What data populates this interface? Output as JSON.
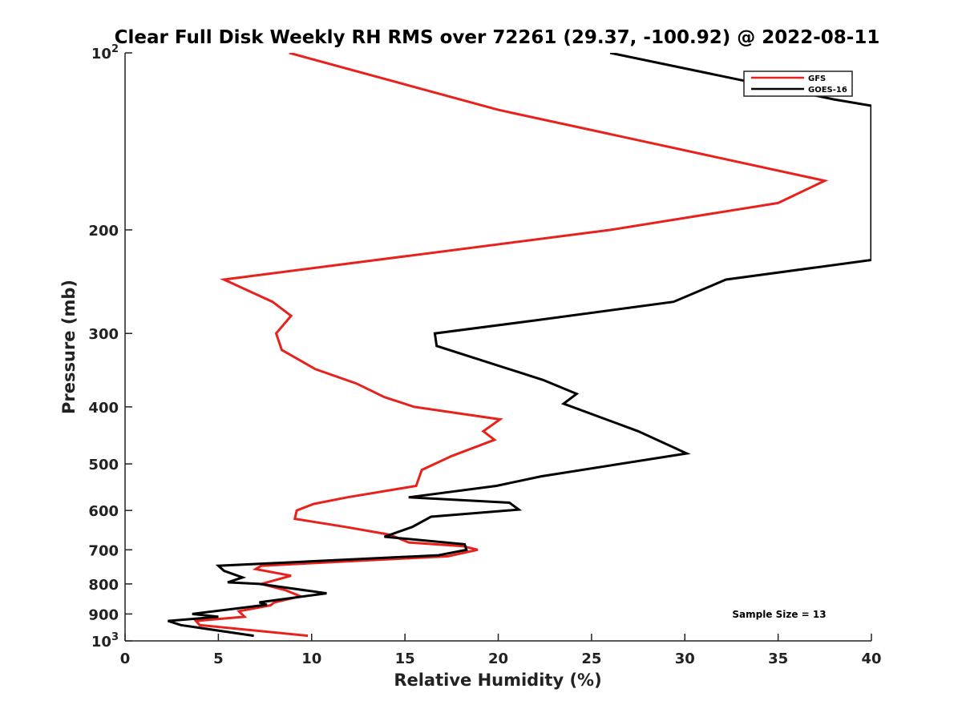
{
  "chart_data": {
    "type": "line",
    "title": "Clear Full Disk Weekly RH RMS over 72261 (29.37, -100.92) @ 2022-08-11",
    "xlabel": "Relative Humidity (%)",
    "ylabel": "Pressure (mb)",
    "xlim": [
      0,
      40
    ],
    "ylim": [
      100,
      1000
    ],
    "y_scale": "log",
    "y_reversed": true,
    "x_ticks": [
      0,
      5,
      10,
      15,
      20,
      25,
      30,
      35,
      40
    ],
    "x_tick_labels": [
      "0",
      "5",
      "10",
      "15",
      "20",
      "25",
      "30",
      "35",
      "40"
    ],
    "y_ticks": [
      100,
      200,
      300,
      400,
      500,
      600,
      700,
      800,
      900,
      1000
    ],
    "y_tick_labels": [
      "10^2",
      "200",
      "300",
      "400",
      "500",
      "600",
      "700",
      "800",
      "900",
      "10^3"
    ],
    "grid": false,
    "legend_position": "top-right",
    "annotation": "Sample Size = 13",
    "series": [
      {
        "name": "GFS",
        "color": "#e8211c",
        "points": [
          [
            8.8,
            100
          ],
          [
            20.0,
            125
          ],
          [
            37.5,
            165
          ],
          [
            35.0,
            180
          ],
          [
            26.0,
            200
          ],
          [
            5.3,
            243
          ],
          [
            7.9,
            265
          ],
          [
            8.9,
            280
          ],
          [
            8.1,
            300
          ],
          [
            8.4,
            320
          ],
          [
            10.2,
            345
          ],
          [
            12.4,
            365
          ],
          [
            13.9,
            385
          ],
          [
            15.5,
            400
          ],
          [
            20.1,
            420
          ],
          [
            19.2,
            440
          ],
          [
            19.8,
            455
          ],
          [
            17.5,
            485
          ],
          [
            15.9,
            512
          ],
          [
            15.6,
            545
          ],
          [
            11.9,
            570
          ],
          [
            10.1,
            585
          ],
          [
            9.2,
            600
          ],
          [
            9.1,
            620
          ],
          [
            11.8,
            640
          ],
          [
            14.2,
            660
          ],
          [
            15.2,
            680
          ],
          [
            18.1,
            690
          ],
          [
            18.9,
            700
          ],
          [
            17.3,
            718
          ],
          [
            7.3,
            745
          ],
          [
            7.0,
            755
          ],
          [
            8.9,
            775
          ],
          [
            7.3,
            800
          ],
          [
            8.6,
            820
          ],
          [
            9.4,
            840
          ],
          [
            8.0,
            860
          ],
          [
            7.8,
            870
          ],
          [
            6.1,
            890
          ],
          [
            6.4,
            910
          ],
          [
            3.8,
            925
          ],
          [
            4.0,
            940
          ],
          [
            9.8,
            980
          ]
        ]
      },
      {
        "name": "GOES-16",
        "color": "#000000",
        "points": [
          [
            26.0,
            100
          ],
          [
            38.0,
            120
          ],
          [
            40.0,
            123
          ],
          [
            40.0,
            225
          ],
          [
            32.2,
            243
          ],
          [
            29.4,
            265
          ],
          [
            22.0,
            285
          ],
          [
            16.6,
            300
          ],
          [
            16.7,
            315
          ],
          [
            22.4,
            360
          ],
          [
            24.2,
            380
          ],
          [
            23.5,
            395
          ],
          [
            27.5,
            440
          ],
          [
            30.1,
            480
          ],
          [
            22.3,
            525
          ],
          [
            19.9,
            545
          ],
          [
            15.2,
            570
          ],
          [
            20.6,
            582
          ],
          [
            21.1,
            598
          ],
          [
            16.4,
            615
          ],
          [
            15.4,
            640
          ],
          [
            13.9,
            665
          ],
          [
            18.2,
            685
          ],
          [
            18.3,
            700
          ],
          [
            16.8,
            715
          ],
          [
            5.0,
            745
          ],
          [
            5.3,
            760
          ],
          [
            6.3,
            780
          ],
          [
            5.5,
            795
          ],
          [
            7.2,
            800
          ],
          [
            10.8,
            830
          ],
          [
            7.2,
            860
          ],
          [
            7.6,
            868
          ],
          [
            3.6,
            900
          ],
          [
            5.0,
            910
          ],
          [
            2.3,
            925
          ],
          [
            3.0,
            940
          ],
          [
            6.9,
            980
          ]
        ]
      }
    ]
  }
}
